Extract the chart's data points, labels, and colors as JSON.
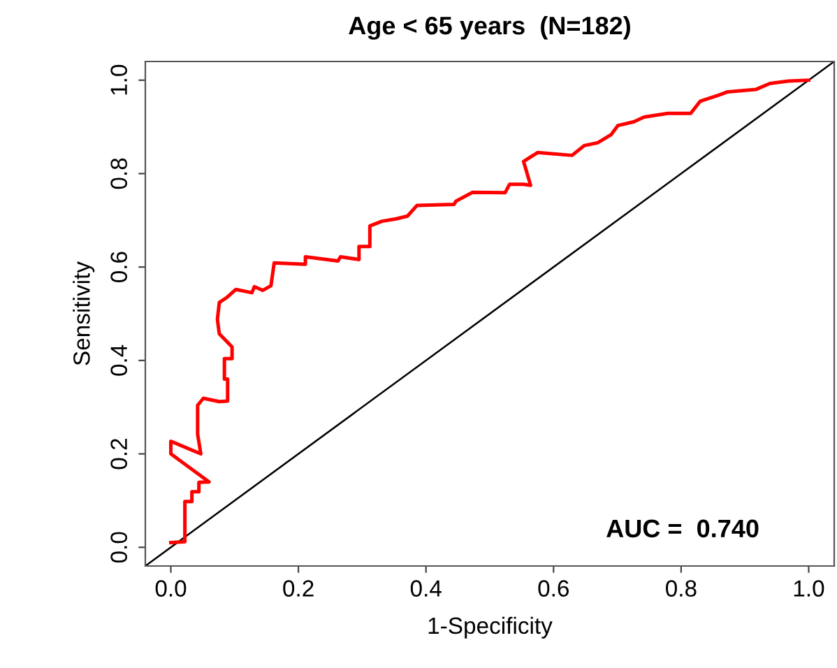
{
  "chart_data": {
    "type": "line",
    "title": "Age < 65 years  (N=182)",
    "xlabel": "1-Specificity",
    "ylabel": "Sensitivity",
    "xlim": [
      -0.04,
      1.04
    ],
    "ylim": [
      -0.04,
      1.04
    ],
    "xticks": [
      {
        "value": 0,
        "label": "0.0"
      },
      {
        "value": 0.2,
        "label": "0.2"
      },
      {
        "value": 0.4,
        "label": "0.4"
      },
      {
        "value": 0.6,
        "label": "0.6"
      },
      {
        "value": 0.8,
        "label": "0.8"
      },
      {
        "value": 1,
        "label": "1.0"
      }
    ],
    "yticks": [
      {
        "value": 0,
        "label": "0.0"
      },
      {
        "value": 0.2,
        "label": "0.2"
      },
      {
        "value": 0.4,
        "label": "0.4"
      },
      {
        "value": 0.6,
        "label": "0.6"
      },
      {
        "value": 0.8,
        "label": "0.8"
      },
      {
        "value": 1,
        "label": "1.0"
      }
    ],
    "grid": false,
    "marker": "none",
    "line_style": "solid",
    "series": [
      {
        "color": "#000000",
        "x": [
          -0.04,
          1.04
        ],
        "values": [
          -0.04,
          1.04
        ]
      },
      {
        "color": "#ff0000",
        "x": [
          0.0,
          0.022,
          0.022,
          0.033,
          0.033,
          0.044,
          0.044,
          0.06,
          0.0,
          0.0,
          0.047,
          0.042,
          0.042,
          0.051,
          0.076,
          0.089,
          0.089,
          0.084,
          0.084,
          0.096,
          0.096,
          0.076,
          0.073,
          0.076,
          0.087,
          0.102,
          0.127,
          0.131,
          0.144,
          0.157,
          0.162,
          0.211,
          0.211,
          0.262,
          0.266,
          0.295,
          0.295,
          0.312,
          0.312,
          0.331,
          0.353,
          0.371,
          0.386,
          0.444,
          0.447,
          0.473,
          0.524,
          0.531,
          0.553,
          0.564,
          0.553,
          0.575,
          0.629,
          0.648,
          0.669,
          0.69,
          0.701,
          0.726,
          0.742,
          0.779,
          0.815,
          0.83,
          0.859,
          0.873,
          0.917,
          0.939,
          0.968,
          1.0
        ],
        "values": [
          0.01,
          0.012,
          0.098,
          0.098,
          0.119,
          0.119,
          0.139,
          0.14,
          0.2,
          0.227,
          0.2,
          0.242,
          0.304,
          0.319,
          0.312,
          0.313,
          0.36,
          0.36,
          0.404,
          0.404,
          0.429,
          0.457,
          0.488,
          0.524,
          0.534,
          0.552,
          0.545,
          0.558,
          0.55,
          0.56,
          0.609,
          0.606,
          0.622,
          0.613,
          0.622,
          0.616,
          0.644,
          0.644,
          0.688,
          0.698,
          0.703,
          0.709,
          0.732,
          0.734,
          0.741,
          0.76,
          0.759,
          0.777,
          0.777,
          0.775,
          0.826,
          0.845,
          0.839,
          0.86,
          0.866,
          0.883,
          0.903,
          0.911,
          0.921,
          0.929,
          0.929,
          0.955,
          0.968,
          0.975,
          0.98,
          0.993,
          0.998,
          1.0
        ]
      }
    ],
    "annotations": [
      "AUC =  0.740"
    ]
  }
}
